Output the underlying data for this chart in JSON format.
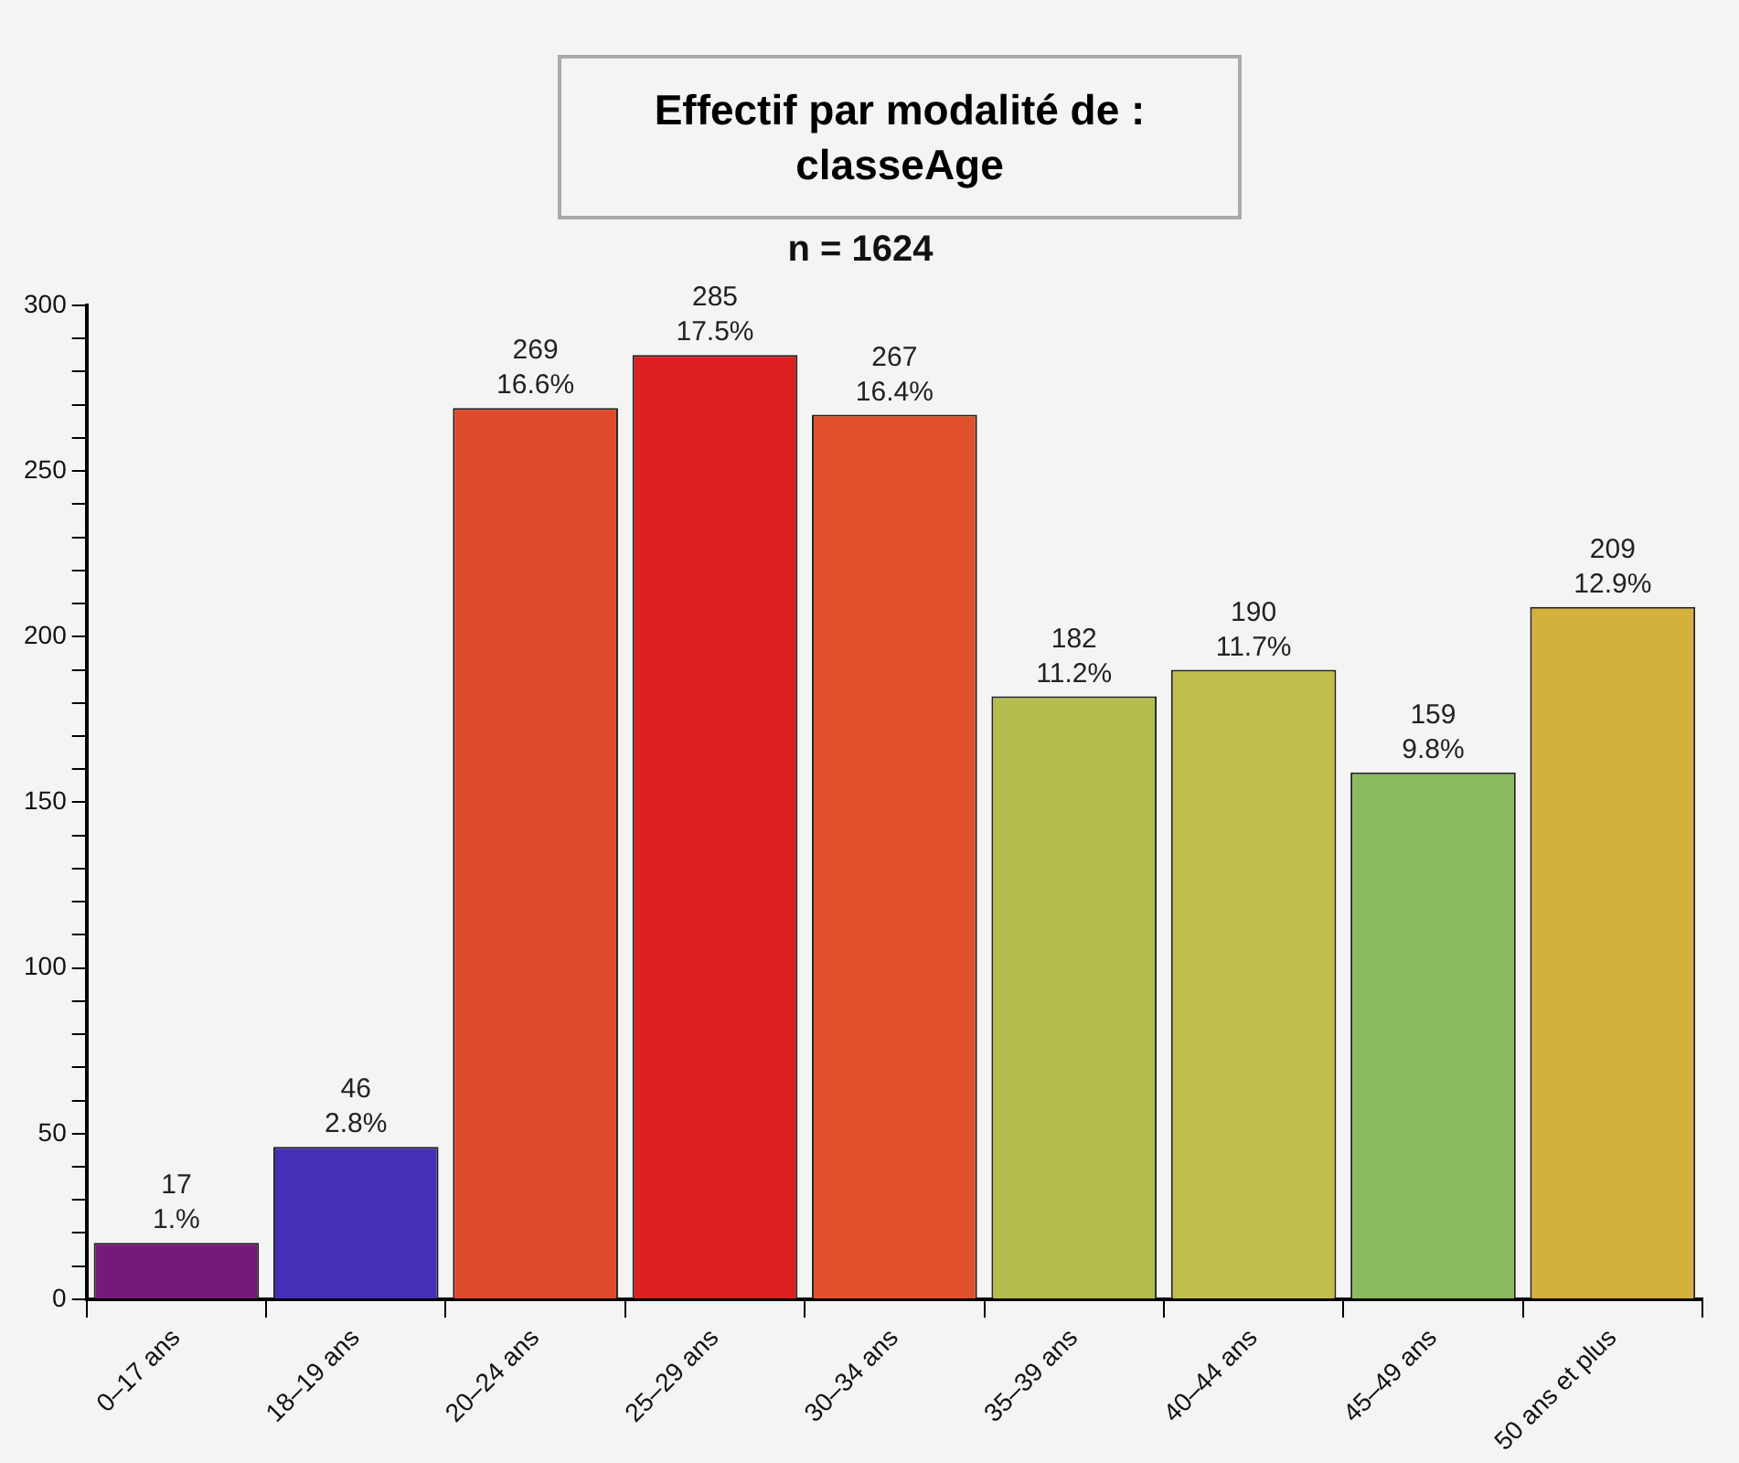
{
  "chart_data": {
    "type": "bar",
    "title": "Effectif par modalité de : classeAge",
    "subtitle": "n = 1624",
    "categories": [
      "0–17 ans",
      "18–19 ans",
      "20–24 ans",
      "25–29 ans",
      "30–34 ans",
      "35–39 ans",
      "40–44 ans",
      "45–49 ans",
      "50 ans et plus"
    ],
    "values": [
      17,
      46,
      269,
      285,
      267,
      182,
      190,
      159,
      209
    ],
    "colors": [
      "#76197a",
      "#4430b8",
      "#e04a2c",
      "#dc1f20",
      "#e0502c",
      "#b5bd4e",
      "#bfbd4c",
      "#8cba60",
      "#d4b03c"
    ],
    "value_labels": [
      "17\n1.%",
      "46\n2.8%",
      "269\n16.6%",
      "285\n17.5%",
      "267\n16.4%",
      "182\n11.2%",
      "190\n11.7%",
      "159\n9.8%",
      "209\n12.9%"
    ],
    "ylim": [
      0,
      300
    ],
    "yticks": [
      0,
      {
        "value": 10,
        "label": null
      },
      {
        "value": 20,
        "label": null
      },
      {
        "value": 30,
        "label": null
      },
      {
        "value": 40,
        "label": null
      },
      50,
      {
        "value": 60,
        "label": null
      },
      {
        "value": 70,
        "label": null
      },
      {
        "value": 80,
        "label": null
      },
      {
        "value": 90,
        "label": null
      },
      100,
      {
        "value": 110,
        "label": null
      },
      {
        "value": 120,
        "label": null
      },
      {
        "value": 130,
        "label": null
      },
      {
        "value": 140,
        "label": null
      },
      150,
      {
        "value": 160,
        "label": null
      },
      {
        "value": 170,
        "label": null
      },
      {
        "value": 180,
        "label": null
      },
      {
        "value": 190,
        "label": null
      },
      200,
      {
        "value": 210,
        "label": null
      },
      {
        "value": 220,
        "label": null
      },
      {
        "value": 230,
        "label": null
      },
      {
        "value": 240,
        "label": null
      },
      250,
      {
        "value": 260,
        "label": null
      },
      {
        "value": 270,
        "label": null
      },
      {
        "value": 280,
        "label": null
      },
      {
        "value": 290,
        "label": null
      },
      300
    ],
    "grid": false,
    "legend": false
  }
}
